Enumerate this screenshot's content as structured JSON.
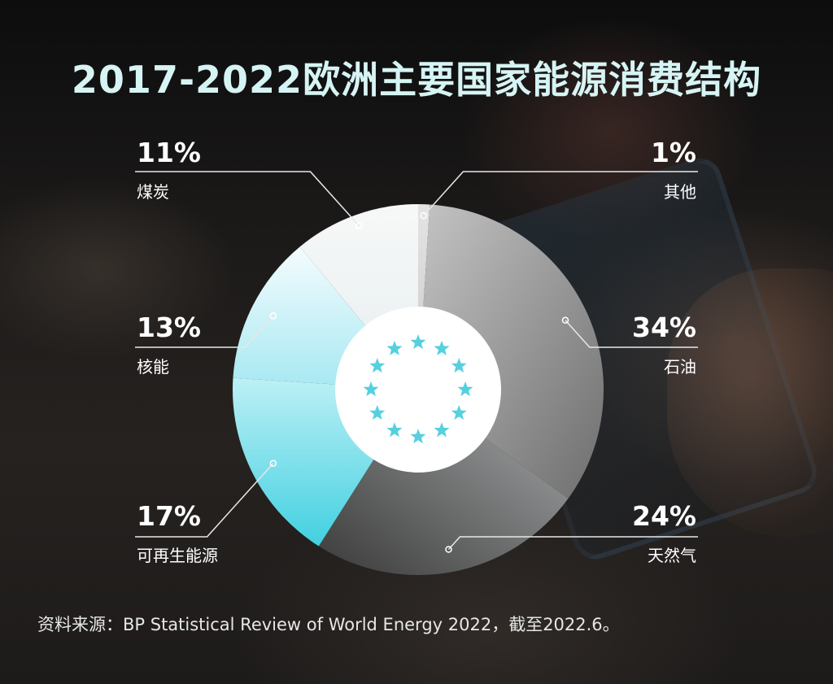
{
  "title": "2017-2022欧洲主要国家能源消费结构",
  "source": "资料来源：BP Statistical Review of World Energy 2022，截至2022.6。",
  "chart_data": {
    "type": "pie",
    "title": "2017-2022欧洲主要国家能源消费结构",
    "donut": true,
    "center_icon": "eu-stars-icon",
    "slices": [
      {
        "name": "其他",
        "value": 1,
        "label": "1%",
        "color": "#dcdcdc"
      },
      {
        "name": "石油",
        "value": 34,
        "label": "34%",
        "color": "#9c9c9c"
      },
      {
        "name": "天然气",
        "value": 24,
        "label": "24%",
        "color": "#5f5f5f"
      },
      {
        "name": "可再生能源",
        "value": 17,
        "label": "17%",
        "color": "#4fd3e2"
      },
      {
        "name": "核能",
        "value": 13,
        "label": "13%",
        "color": "#cbf3f8"
      },
      {
        "name": "煤炭",
        "value": 11,
        "label": "11%",
        "color": "#eef3f4"
      }
    ]
  }
}
